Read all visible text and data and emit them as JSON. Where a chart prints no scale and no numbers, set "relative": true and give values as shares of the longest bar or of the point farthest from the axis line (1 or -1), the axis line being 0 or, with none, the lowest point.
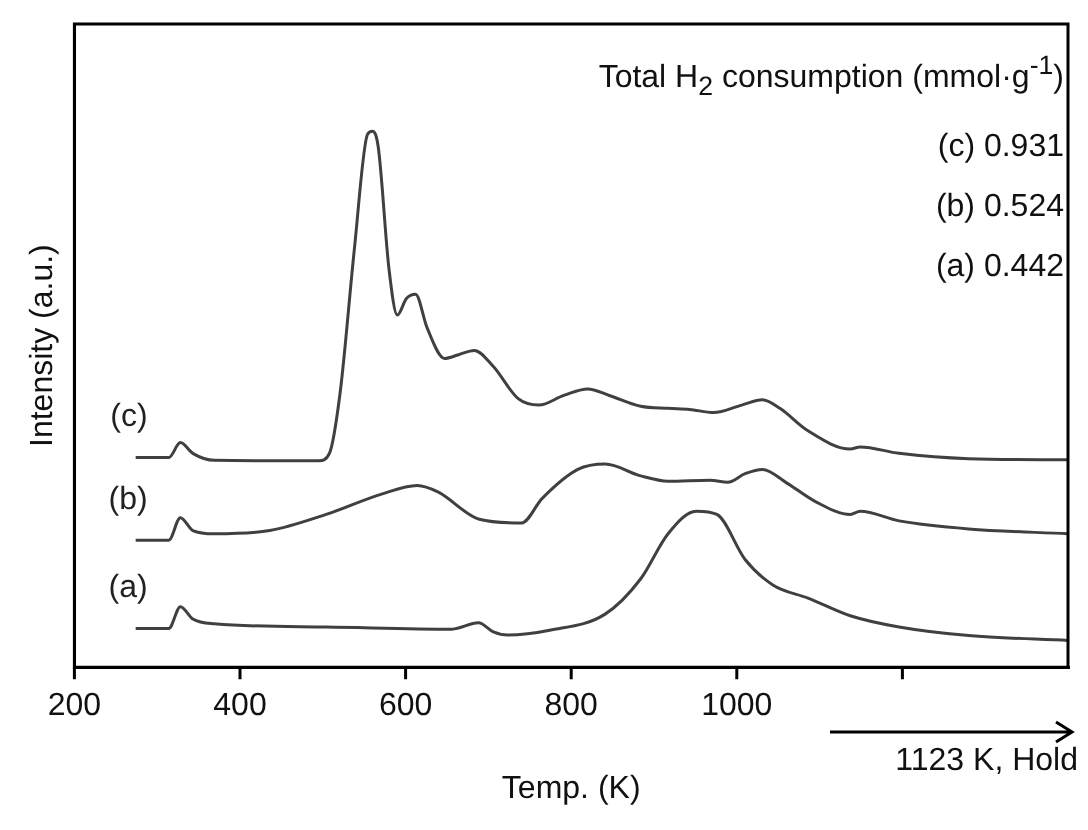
{
  "chart_data": {
    "type": "line",
    "relative": true,
    "xlabel": "Temp. (K)",
    "ylabel": "Intensity (a.u.)",
    "xlim": [
      200,
      1400
    ],
    "xticks": [
      200,
      400,
      600,
      800,
      1000,
      {
        "value": 1200,
        "label": null
      }
    ],
    "grid": false,
    "legend": false,
    "marker": "none",
    "line_style": "solid",
    "annotations": [
      "Total H$_{2}$ consumption (mmol·g$^{-1}$)",
      "(c) 0.931",
      "(b) 0.524",
      "(a) 0.442",
      "1123 K, Hold"
    ],
    "series": [
      {
        "name": "(c)",
        "color": "#404040",
        "x": [
          274,
          314,
          328,
          343,
          369,
          495,
          508,
          521,
          538,
          554,
          560,
          567,
          580,
          590,
          601,
          612,
          626,
          647,
          664,
          683,
          706,
          736,
          761,
          791,
          820,
          846,
          884,
          917,
          943,
          972,
          1006,
          1031,
          1052,
          1086,
          1137,
          1149,
          1196,
          1280,
          1400
        ],
        "values": [
          0.391,
          0.391,
          0.419,
          0.399,
          0.386,
          0.385,
          0.399,
          0.513,
          0.778,
          0.994,
          1.0,
          0.97,
          0.742,
          0.657,
          0.688,
          0.696,
          0.633,
          0.576,
          0.583,
          0.591,
          0.561,
          0.501,
          0.489,
          0.507,
          0.519,
          0.507,
          0.487,
          0.483,
          0.481,
          0.475,
          0.489,
          0.499,
          0.483,
          0.441,
          0.407,
          0.411,
          0.399,
          0.389,
          0.387
        ]
      },
      {
        "name": "(b)",
        "color": "#404040",
        "x": [
          274,
          314,
          328,
          343,
          369,
          436,
          504,
          571,
          614,
          639,
          689,
          740,
          765,
          808,
          841,
          884,
          917,
          968,
          989,
          1010,
          1031,
          1061,
          1095,
          1137,
          1149,
          1196,
          1280,
          1400
        ],
        "values": [
          0.237,
          0.237,
          0.279,
          0.255,
          0.249,
          0.255,
          0.285,
          0.323,
          0.339,
          0.327,
          0.276,
          0.269,
          0.315,
          0.369,
          0.379,
          0.357,
          0.347,
          0.349,
          0.345,
          0.361,
          0.369,
          0.343,
          0.309,
          0.285,
          0.291,
          0.273,
          0.258,
          0.249
        ]
      },
      {
        "name": "(a)",
        "color": "#404040",
        "x": [
          274,
          314,
          328,
          343,
          369,
          504,
          656,
          688,
          706,
          723,
          774,
          841,
          884,
          917,
          951,
          976,
          1010,
          1044,
          1086,
          1137,
          1196,
          1280,
          1400
        ],
        "values": [
          0.072,
          0.072,
          0.113,
          0.09,
          0.081,
          0.075,
          0.071,
          0.083,
          0.066,
          0.06,
          0.069,
          0.099,
          0.165,
          0.249,
          0.291,
          0.285,
          0.201,
          0.153,
          0.129,
          0.096,
          0.075,
          0.059,
          0.05
        ]
      }
    ]
  }
}
